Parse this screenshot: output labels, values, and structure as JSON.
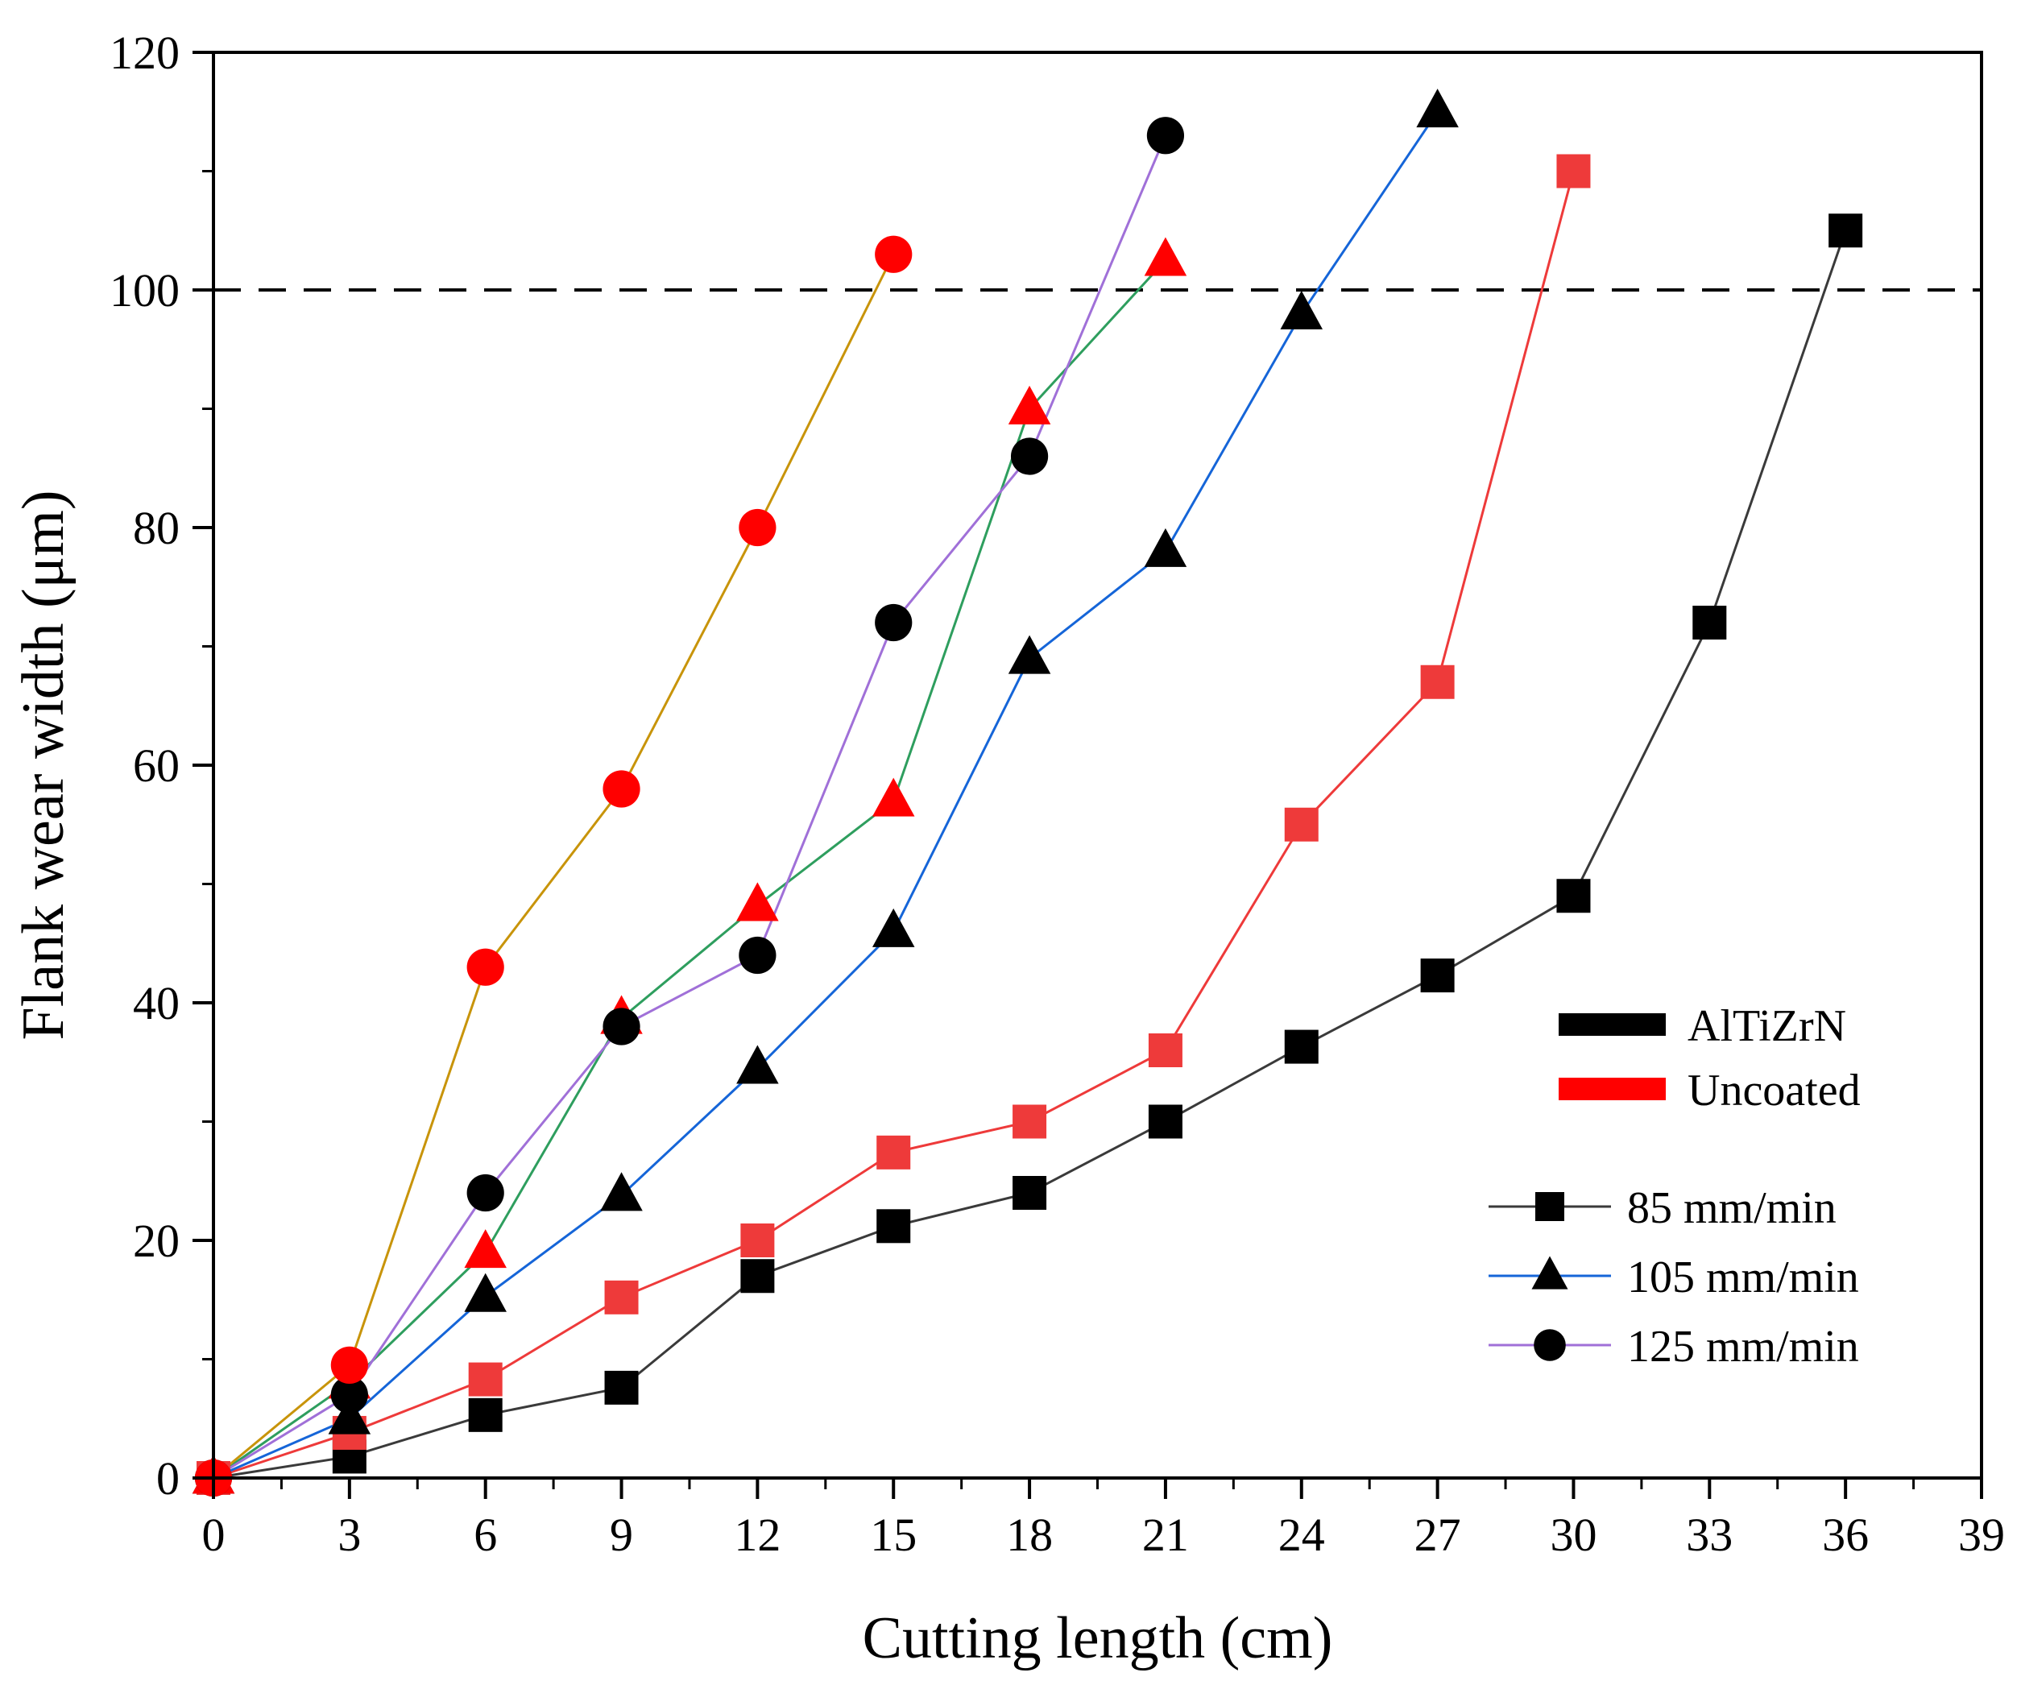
{
  "chart_data": {
    "type": "line",
    "xlabel": "Cutting length (cm)",
    "ylabel": "Flank wear width (μm)",
    "xlim": [
      0,
      39
    ],
    "ylim": [
      0,
      120
    ],
    "xticks": [
      0,
      3,
      6,
      9,
      12,
      15,
      18,
      21,
      24,
      27,
      30,
      33,
      36,
      39
    ],
    "yticks": [
      0,
      20,
      40,
      60,
      80,
      100,
      120
    ],
    "reference_line": {
      "y": 100,
      "style": "dashed"
    },
    "legend": {
      "placement": "bottom-right",
      "coating_entries": [
        {
          "label": "AlTiZrN",
          "color": "#000000"
        },
        {
          "label": "Uncoated",
          "color": "#ff0000"
        }
      ],
      "speed_entries": [
        {
          "label": "85 mm/min",
          "marker": "square",
          "line_color": "#3a3a3a"
        },
        {
          "label": "105 mm/min",
          "marker": "triangle",
          "line_color": "#1565d8"
        },
        {
          "label": "125 mm/min",
          "marker": "circle",
          "line_color": "#a070d8"
        }
      ]
    },
    "series": [
      {
        "name": "AlTiZrN 85 mm/min",
        "marker": "square",
        "marker_color": "#000000",
        "line_color": "#3a3a3a",
        "x": [
          0,
          3,
          6,
          9,
          12,
          15,
          18,
          21,
          24,
          27,
          30,
          33,
          36
        ],
        "y": [
          0,
          1.8,
          5.3,
          7.6,
          17,
          21.2,
          24,
          30,
          36.3,
          42.3,
          49,
          72,
          105
        ]
      },
      {
        "name": "Uncoated 85 mm/min",
        "marker": "square",
        "marker_color": "#ee3a3a",
        "line_color": "#ee3a3a",
        "x": [
          0,
          3,
          6,
          9,
          12,
          15,
          18,
          21,
          24,
          27,
          30
        ],
        "y": [
          0,
          3.8,
          8.3,
          15.2,
          20,
          27.4,
          30,
          36,
          55,
          67,
          110
        ]
      },
      {
        "name": "AlTiZrN 105 mm/min",
        "marker": "triangle",
        "marker_color": "#000000",
        "line_color": "#1565d8",
        "x": [
          0,
          3,
          6,
          9,
          12,
          15,
          18,
          21,
          24,
          27
        ],
        "y": [
          0,
          5,
          15.3,
          23.8,
          34.5,
          46,
          69,
          78,
          98,
          115
        ]
      },
      {
        "name": "Uncoated 105 mm/min",
        "marker": "triangle",
        "marker_color": "#ff0000",
        "line_color": "#2e9e5e",
        "x": [
          0,
          3,
          6,
          9,
          12,
          15,
          18,
          21
        ],
        "y": [
          0,
          8,
          19,
          38.7,
          48.2,
          57,
          90,
          102.5
        ]
      },
      {
        "name": "AlTiZrN 125 mm/min",
        "marker": "circle",
        "marker_color": "#000000",
        "line_color": "#a070d8",
        "x": [
          0,
          3,
          6,
          9,
          12,
          15,
          18,
          21
        ],
        "y": [
          0,
          7,
          24,
          38,
          44,
          72,
          86,
          113
        ]
      },
      {
        "name": "Uncoated 125 mm/min",
        "marker": "circle",
        "marker_color": "#ff0000",
        "line_color": "#c8940a",
        "x": [
          0,
          3,
          6,
          9,
          12,
          15
        ],
        "y": [
          0,
          9.5,
          43,
          58,
          80,
          103
        ]
      }
    ]
  }
}
